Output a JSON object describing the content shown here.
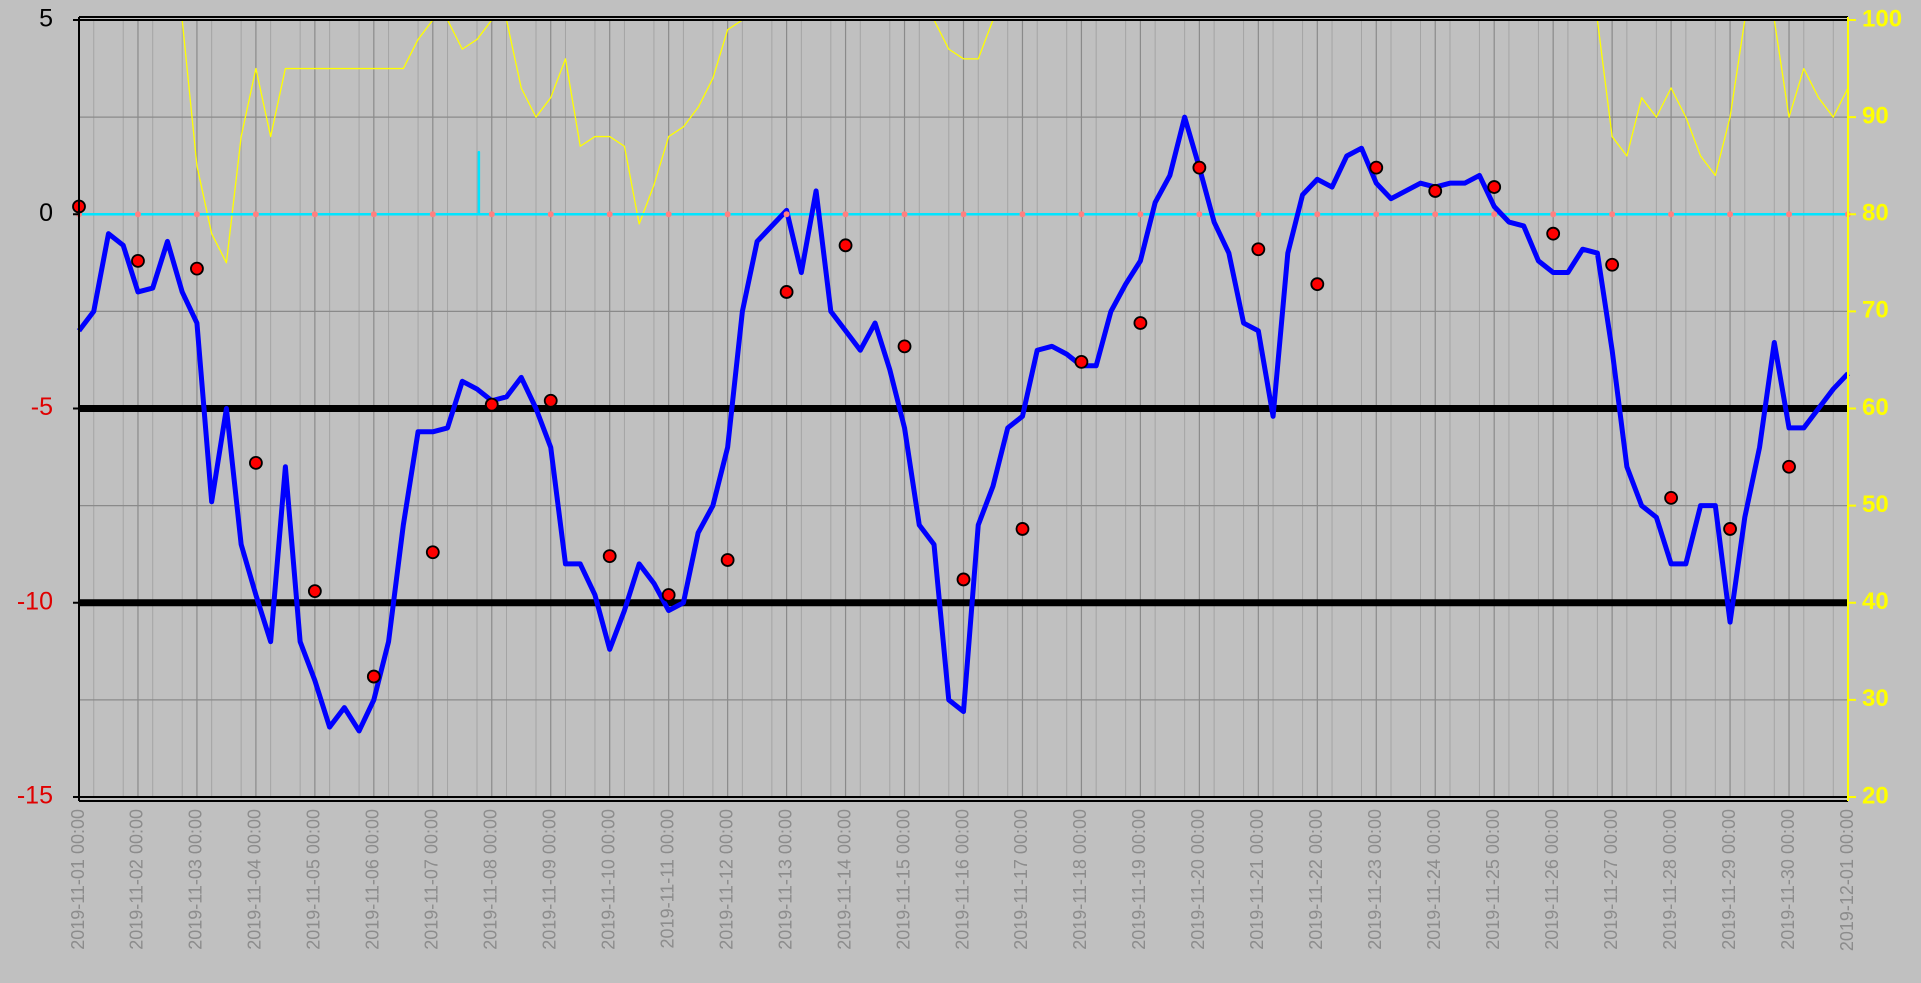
{
  "chart_data": {
    "type": "line",
    "xlim": [
      "2019-11-01 00:00",
      "2019-12-01 00:00"
    ],
    "xticks": [
      "2019-11-01 00:00",
      "2019-11-02 00:00",
      "2019-11-03 00:00",
      "2019-11-04 00:00",
      "2019-11-05 00:00",
      "2019-11-06 00:00",
      "2019-11-07 00:00",
      "2019-11-08 00:00",
      "2019-11-09 00:00",
      "2019-11-10 00:00",
      "2019-11-11 00:00",
      "2019-11-12 00:00",
      "2019-11-13 00:00",
      "2019-11-14 00:00",
      "2019-11-15 00:00",
      "2019-11-16 00:00",
      "2019-11-17 00:00",
      "2019-11-18 00:00",
      "2019-11-19 00:00",
      "2019-11-20 00:00",
      "2019-11-21 00:00",
      "2019-11-22 00:00",
      "2019-11-23 00:00",
      "2019-11-24 00:00",
      "2019-11-25 00:00",
      "2019-11-26 00:00",
      "2019-11-27 00:00",
      "2019-11-28 00:00",
      "2019-11-29 00:00",
      "2019-11-30 00:00",
      "2019-12-01 00:00"
    ],
    "ylim": [
      -15,
      5
    ],
    "yticks": [
      5,
      0,
      -5,
      -10,
      -15
    ],
    "ytick_colors": [
      "#000000",
      "#000000",
      "#e00000",
      "#e00000",
      "#e00000"
    ],
    "y2lim": [
      20,
      100
    ],
    "y2ticks": [
      20,
      30,
      40,
      50,
      60,
      70,
      80,
      90,
      100
    ],
    "y2_color": "#ffff00",
    "hlines": [
      -5,
      -10
    ],
    "grid": true,
    "background": "#c0c0c0",
    "x": [
      "2019-11-01 00:00",
      "2019-11-01 06:00",
      "2019-11-01 12:00",
      "2019-11-01 18:00",
      "2019-11-02 00:00",
      "2019-11-02 06:00",
      "2019-11-02 12:00",
      "2019-11-02 18:00",
      "2019-11-03 00:00",
      "2019-11-03 06:00",
      "2019-11-03 12:00",
      "2019-11-03 18:00",
      "2019-11-04 00:00",
      "2019-11-04 06:00",
      "2019-11-04 12:00",
      "2019-11-04 18:00",
      "2019-11-05 00:00",
      "2019-11-05 06:00",
      "2019-11-05 12:00",
      "2019-11-05 18:00",
      "2019-11-06 00:00",
      "2019-11-06 06:00",
      "2019-11-06 12:00",
      "2019-11-06 18:00",
      "2019-11-07 00:00",
      "2019-11-07 06:00",
      "2019-11-07 12:00",
      "2019-11-07 18:00",
      "2019-11-08 00:00",
      "2019-11-08 06:00",
      "2019-11-08 12:00",
      "2019-11-08 18:00",
      "2019-11-09 00:00",
      "2019-11-09 06:00",
      "2019-11-09 12:00",
      "2019-11-09 18:00",
      "2019-11-10 00:00",
      "2019-11-10 06:00",
      "2019-11-10 12:00",
      "2019-11-10 18:00",
      "2019-11-11 00:00",
      "2019-11-11 06:00",
      "2019-11-11 12:00",
      "2019-11-11 18:00",
      "2019-11-12 00:00",
      "2019-11-12 06:00",
      "2019-11-12 12:00",
      "2019-11-12 18:00",
      "2019-11-13 00:00",
      "2019-11-13 06:00",
      "2019-11-13 12:00",
      "2019-11-13 18:00",
      "2019-11-14 00:00",
      "2019-11-14 06:00",
      "2019-11-14 12:00",
      "2019-11-14 18:00",
      "2019-11-15 00:00",
      "2019-11-15 06:00",
      "2019-11-15 12:00",
      "2019-11-15 18:00",
      "2019-11-16 00:00",
      "2019-11-16 06:00",
      "2019-11-16 12:00",
      "2019-11-16 18:00",
      "2019-11-17 00:00",
      "2019-11-17 06:00",
      "2019-11-17 12:00",
      "2019-11-17 18:00",
      "2019-11-18 00:00",
      "2019-11-18 06:00",
      "2019-11-18 12:00",
      "2019-11-18 18:00",
      "2019-11-19 00:00",
      "2019-11-19 06:00",
      "2019-11-19 12:00",
      "2019-11-19 18:00",
      "2019-11-20 00:00",
      "2019-11-20 06:00",
      "2019-11-20 12:00",
      "2019-11-20 18:00",
      "2019-11-21 00:00",
      "2019-11-21 06:00",
      "2019-11-21 12:00",
      "2019-11-21 18:00",
      "2019-11-22 00:00",
      "2019-11-22 06:00",
      "2019-11-22 12:00",
      "2019-11-22 18:00",
      "2019-11-23 00:00",
      "2019-11-23 06:00",
      "2019-11-23 12:00",
      "2019-11-23 18:00",
      "2019-11-24 00:00",
      "2019-11-24 06:00",
      "2019-11-24 12:00",
      "2019-11-24 18:00",
      "2019-11-25 00:00",
      "2019-11-25 06:00",
      "2019-11-25 12:00",
      "2019-11-25 18:00",
      "2019-11-26 00:00",
      "2019-11-26 06:00",
      "2019-11-26 12:00",
      "2019-11-26 18:00",
      "2019-11-27 00:00",
      "2019-11-27 06:00",
      "2019-11-27 12:00",
      "2019-11-27 18:00",
      "2019-11-28 00:00",
      "2019-11-28 06:00",
      "2019-11-28 12:00",
      "2019-11-28 18:00",
      "2019-11-29 00:00",
      "2019-11-29 06:00",
      "2019-11-29 12:00",
      "2019-11-29 18:00",
      "2019-11-30 00:00",
      "2019-11-30 06:00",
      "2019-11-30 12:00",
      "2019-11-30 18:00",
      "2019-12-01 00:00"
    ],
    "series": [
      {
        "color": "#ffff00",
        "axis": "y2",
        "width": 1.3,
        "values": [
          100,
          100,
          100,
          100,
          100,
          100,
          100,
          100,
          85,
          78,
          75,
          88,
          95,
          88,
          95,
          95,
          95,
          95,
          95,
          95,
          95,
          95,
          95,
          98,
          100,
          100,
          97,
          98,
          100,
          100,
          93,
          90,
          92,
          96,
          87,
          88,
          88,
          87,
          79,
          83,
          88,
          89,
          91,
          94,
          99,
          100,
          100,
          100,
          100,
          100,
          100,
          100,
          100,
          100,
          100,
          100,
          100,
          100,
          100,
          97,
          96,
          96,
          100,
          100,
          100,
          100,
          100,
          100,
          100,
          100,
          100,
          100,
          100,
          100,
          100,
          100,
          100,
          100,
          100,
          100,
          100,
          100,
          100,
          100,
          100,
          100,
          100,
          100,
          100,
          100,
          100,
          100,
          100,
          100,
          100,
          100,
          100,
          100,
          100,
          100,
          100,
          100,
          100,
          100,
          88,
          86,
          92,
          90,
          93,
          90,
          86,
          84,
          90,
          100,
          100,
          100,
          90,
          95,
          92,
          90,
          93
        ]
      },
      {
        "color": "#00e5ff",
        "width": 2.5,
        "x": [
          "2019-11-01 00:00",
          "2019-11-07 18:45",
          "2019-11-07 18:45",
          "2019-11-07 18:45",
          "2019-12-01 00:00"
        ],
        "values": [
          0,
          0,
          1.6,
          0,
          0
        ]
      },
      {
        "color": "#0000ff",
        "width": 5,
        "values": [
          -3.0,
          -2.5,
          -0.5,
          -0.8,
          -2.0,
          -1.9,
          -0.7,
          -2.0,
          -2.8,
          -7.4,
          -5.0,
          -8.5,
          -9.8,
          -11.0,
          -6.5,
          -11.0,
          -12.0,
          -13.2,
          -12.7,
          -13.3,
          -12.5,
          -11.0,
          -8.0,
          -5.6,
          -5.6,
          -5.5,
          -4.3,
          -4.5,
          -4.8,
          -4.7,
          -4.2,
          -5.0,
          -6.0,
          -9.0,
          -9.0,
          -9.8,
          -11.2,
          -10.2,
          -9.0,
          -9.5,
          -10.2,
          -10.0,
          -8.2,
          -7.5,
          -6.0,
          -2.5,
          -0.7,
          -0.3,
          0.1,
          -1.5,
          0.6,
          -2.5,
          -3.0,
          -3.5,
          -2.8,
          -4.0,
          -5.5,
          -8.0,
          -8.5,
          -12.5,
          -12.8,
          -8.0,
          -7.0,
          -5.5,
          -5.2,
          -3.5,
          -3.4,
          -3.6,
          -3.9,
          -3.9,
          -2.5,
          -1.8,
          -1.2,
          0.3,
          1.0,
          2.5,
          1.2,
          -0.2,
          -1.0,
          -2.8,
          -3.0,
          -5.2,
          -1.0,
          0.5,
          0.9,
          0.7,
          1.5,
          1.7,
          0.8,
          0.4,
          0.6,
          0.8,
          0.7,
          0.8,
          0.8,
          1.0,
          0.2,
          -0.2,
          -0.3,
          -1.2,
          -1.5,
          -1.5,
          -0.9,
          -1.0,
          -3.5,
          -6.5,
          -7.5,
          -7.8,
          -9.0,
          -9.0,
          -7.5,
          -7.5,
          -10.5,
          -7.8,
          -6.0,
          -3.3,
          -5.5,
          -5.5,
          -5.0,
          -4.5,
          -4.1
        ]
      },
      {
        "type": "scatter",
        "color": "#ff8080",
        "radius": 3,
        "x": [
          "2019-11-01 00:00",
          "2019-11-02 00:00",
          "2019-11-03 00:00",
          "2019-11-04 00:00",
          "2019-11-05 00:00",
          "2019-11-06 00:00",
          "2019-11-07 00:00",
          "2019-11-08 00:00",
          "2019-11-09 00:00",
          "2019-11-10 00:00",
          "2019-11-11 00:00",
          "2019-11-12 00:00",
          "2019-11-13 00:00",
          "2019-11-14 00:00",
          "2019-11-15 00:00",
          "2019-11-16 00:00",
          "2019-11-17 00:00",
          "2019-11-18 00:00",
          "2019-11-19 00:00",
          "2019-11-20 00:00",
          "2019-11-21 00:00",
          "2019-11-22 00:00",
          "2019-11-23 00:00",
          "2019-11-24 00:00",
          "2019-11-25 00:00",
          "2019-11-26 00:00",
          "2019-11-27 00:00",
          "2019-11-28 00:00",
          "2019-11-29 00:00",
          "2019-11-30 00:00",
          "2019-12-01 00:00"
        ],
        "values": [
          0,
          0,
          0,
          0,
          0,
          0,
          0,
          0,
          0,
          0,
          0,
          0,
          0,
          0,
          0,
          0,
          0,
          0,
          0,
          0,
          0,
          0,
          0,
          0,
          0,
          0,
          0,
          0,
          0,
          0,
          0
        ]
      },
      {
        "type": "scatter",
        "color": "#ff0000",
        "radius": 6,
        "x": [
          "2019-11-01 00:00",
          "2019-11-02 00:00",
          "2019-11-03 00:00",
          "2019-11-04 00:00",
          "2019-11-05 00:00",
          "2019-11-06 00:00",
          "2019-11-07 00:00",
          "2019-11-08 00:00",
          "2019-11-09 00:00",
          "2019-11-10 00:00",
          "2019-11-11 00:00",
          "2019-11-12 00:00",
          "2019-11-13 00:00",
          "2019-11-14 00:00",
          "2019-11-15 00:00",
          "2019-11-16 00:00",
          "2019-11-17 00:00",
          "2019-11-18 00:00",
          "2019-11-19 00:00",
          "2019-11-20 00:00",
          "2019-11-21 00:00",
          "2019-11-22 00:00",
          "2019-11-23 00:00",
          "2019-11-24 00:00",
          "2019-11-25 00:00",
          "2019-11-26 00:00",
          "2019-11-27 00:00",
          "2019-11-28 00:00",
          "2019-11-29 00:00",
          "2019-11-30 00:00"
        ],
        "values": [
          0.2,
          -1.2,
          -1.4,
          -6.4,
          -9.7,
          -11.9,
          -8.7,
          -4.9,
          -4.8,
          -8.8,
          -9.8,
          -8.9,
          -2.0,
          -0.8,
          -3.4,
          -9.4,
          -8.1,
          -3.8,
          -2.8,
          1.2,
          -0.9,
          -1.8,
          1.2,
          0.6,
          0.7,
          -0.5,
          -1.3,
          -7.3,
          -8.1,
          -6.5
        ]
      }
    ]
  }
}
